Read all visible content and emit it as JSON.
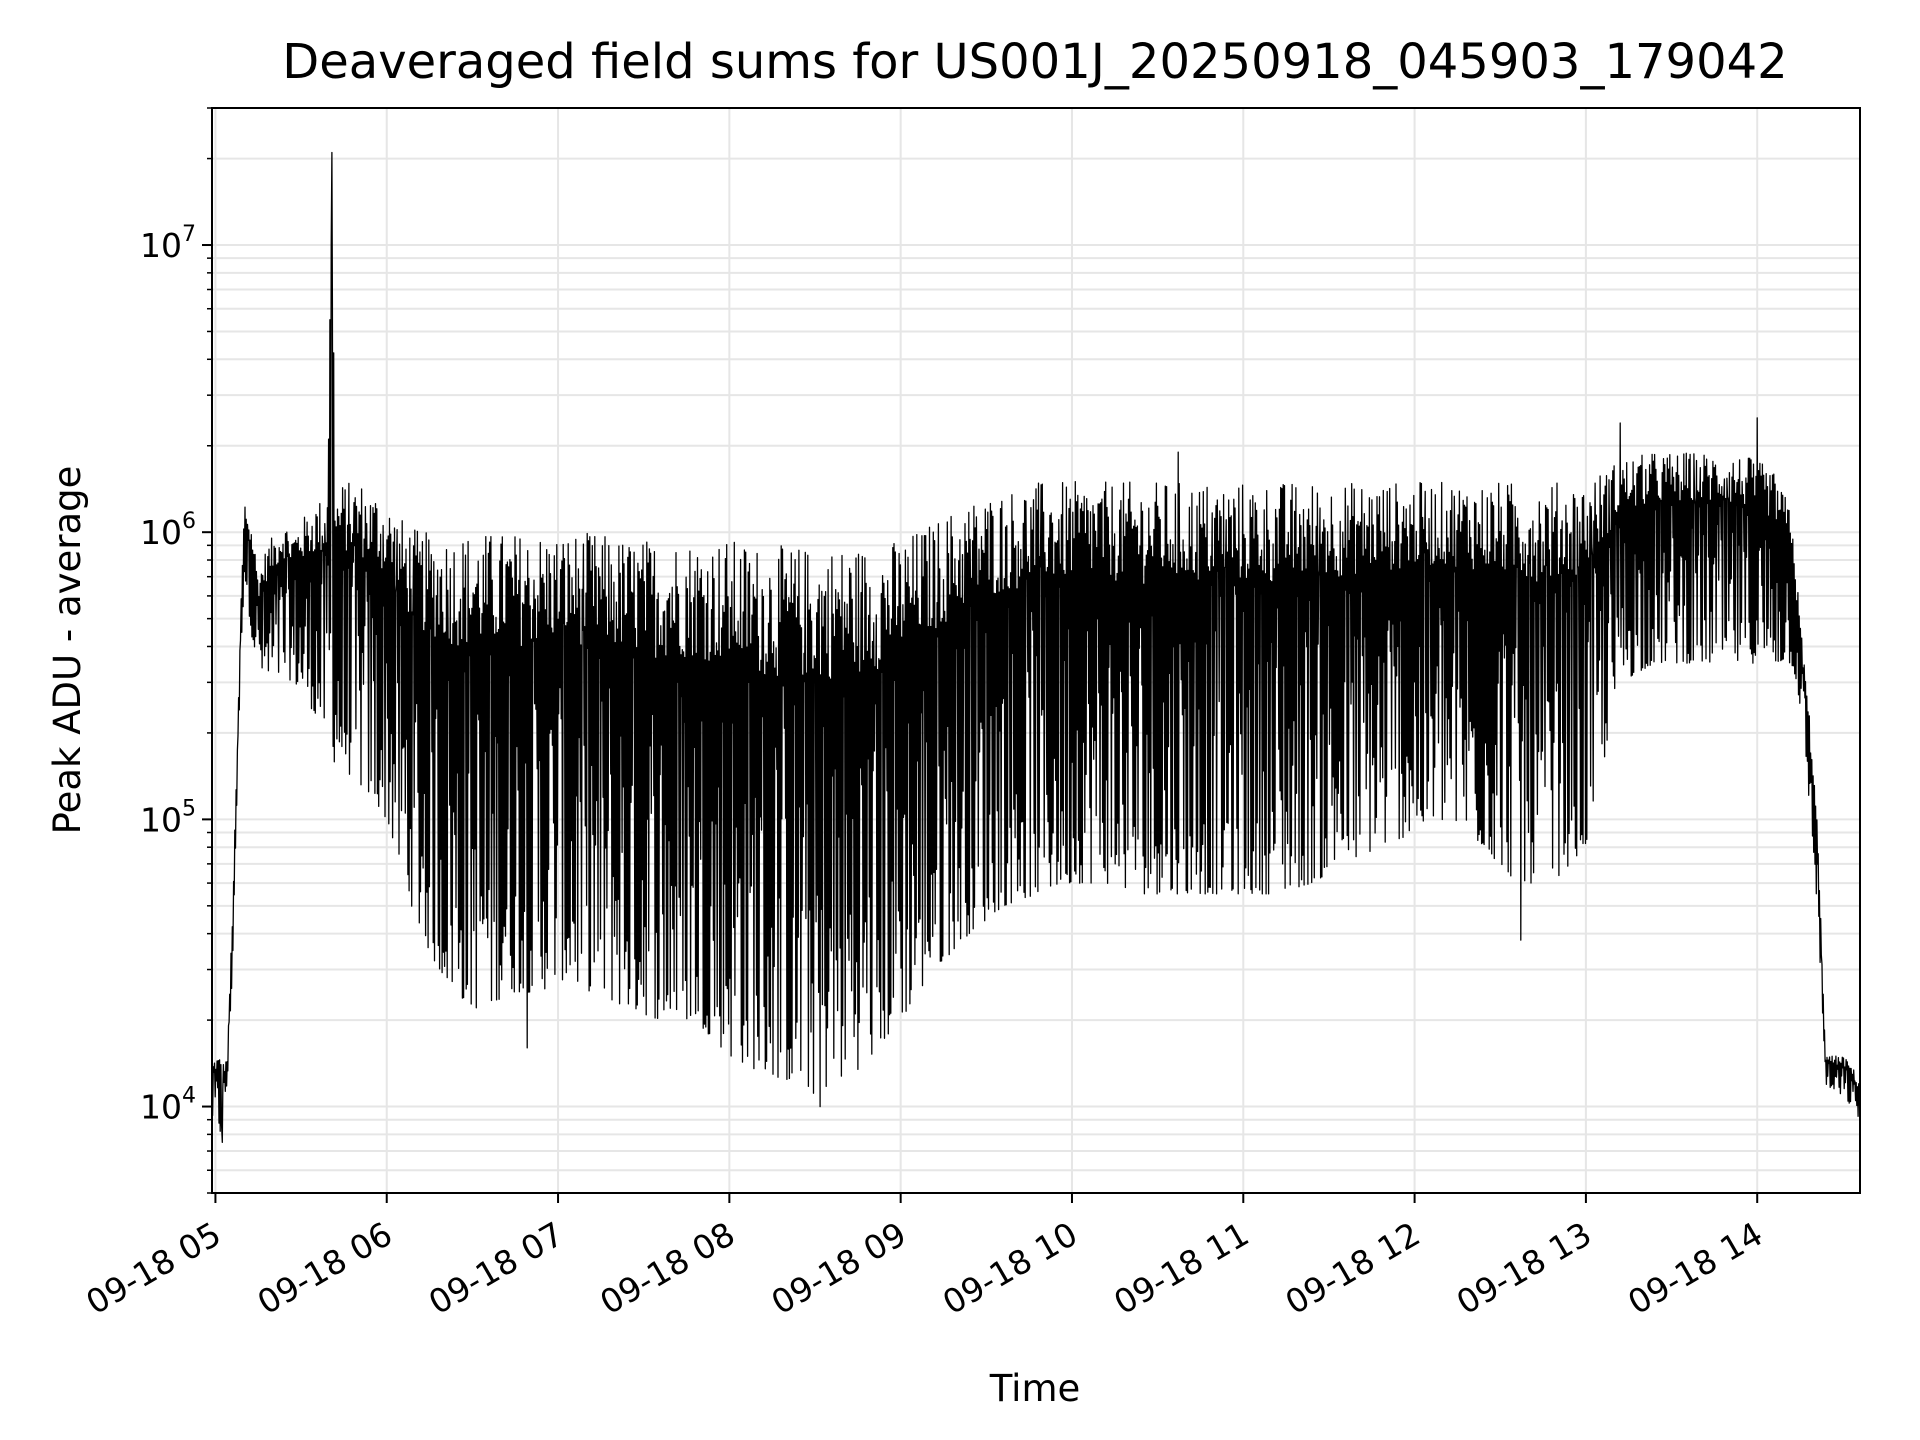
{
  "chart_data": {
    "type": "line",
    "title": "Deaveraged field sums for US001J_20250918_045903_179042",
    "xlabel": "Time",
    "ylabel": "Peak ADU - average",
    "yscale": "log",
    "ylim": [
      5000,
      30000000
    ],
    "grid": true,
    "line_color": "#000000",
    "grid_color": "#e6e6e6",
    "x_tick_labels": [
      "09-18 05",
      "09-18 06",
      "09-18 07",
      "09-18 08",
      "09-18 09",
      "09-18 10",
      "09-18 11",
      "09-18 12",
      "09-18 13",
      "09-18 14"
    ],
    "y_ticks": [
      {
        "value": 10000,
        "base": "10",
        "exp": "4"
      },
      {
        "value": 100000,
        "base": "10",
        "exp": "5"
      },
      {
        "value": 1000000,
        "base": "10",
        "exp": "6"
      },
      {
        "value": 10000000,
        "base": "10",
        "exp": "7"
      }
    ],
    "series": [
      {
        "x_hours": [
          4.98,
          5.0,
          5.03,
          5.05,
          5.07,
          5.1,
          5.13,
          5.15,
          5.17,
          5.2,
          5.22,
          5.25,
          5.3,
          5.35,
          5.4,
          5.45,
          5.5,
          5.55,
          5.6,
          5.65,
          5.68,
          5.7,
          5.75,
          5.8,
          5.85,
          5.9,
          5.95,
          6.0,
          6.1,
          6.2,
          6.3,
          6.4,
          6.5,
          6.6,
          6.7,
          6.8,
          6.9,
          7.0,
          7.2,
          7.4,
          7.6,
          7.8,
          8.0,
          8.2,
          8.4,
          8.5,
          8.6,
          8.8,
          9.0,
          9.2,
          9.4,
          9.6,
          9.8,
          10.0,
          10.2,
          10.4,
          10.6,
          10.8,
          11.0,
          11.2,
          11.4,
          11.6,
          11.8,
          12.0,
          12.2,
          12.4,
          12.6,
          12.8,
          13.0,
          13.2,
          13.4,
          13.6,
          13.8,
          14.0,
          14.1,
          14.2,
          14.25,
          14.3,
          14.35,
          14.4,
          14.45,
          14.5,
          14.55,
          14.6
        ],
        "high": [
          14000,
          15000,
          15000,
          14000,
          15000,
          50000,
          200000,
          600000,
          1300000,
          1100000,
          1000000,
          700000,
          900000,
          1000000,
          1100000,
          1000000,
          1100000,
          1200000,
          1300000,
          1300000,
          21000000,
          1400000,
          1500000,
          1500000,
          1500000,
          1400000,
          1400000,
          1300000,
          1100000,
          1000000,
          1000000,
          1000000,
          1000000,
          1000000,
          1000000,
          1000000,
          1000000,
          1000000,
          1000000,
          950000,
          950000,
          950000,
          950000,
          900000,
          900000,
          880000,
          900000,
          900000,
          950000,
          1100000,
          1300000,
          1400000,
          1500000,
          1500000,
          1500000,
          1500000,
          1500000,
          1500000,
          1500000,
          1500000,
          1500000,
          1500000,
          1500000,
          1500000,
          1500000,
          1500000,
          1500000,
          1500000,
          1500000,
          1800000,
          1900000,
          1900000,
          1900000,
          1800000,
          1600000,
          1200000,
          500000,
          250000,
          100000,
          15000,
          15000,
          15000,
          14000,
          12000
        ],
        "low": [
          9000,
          9000,
          8000,
          10000,
          12000,
          30000,
          150000,
          400000,
          700000,
          500000,
          400000,
          350000,
          280000,
          300000,
          320000,
          300000,
          280000,
          250000,
          220000,
          200000,
          180000,
          150000,
          150000,
          140000,
          130000,
          120000,
          110000,
          100000,
          60000,
          40000,
          30000,
          25000,
          22000,
          22000,
          25000,
          25000,
          25000,
          28000,
          25000,
          22000,
          20000,
          20000,
          15000,
          13000,
          12000,
          11000,
          12000,
          14000,
          20000,
          30000,
          40000,
          50000,
          55000,
          60000,
          60000,
          55000,
          55000,
          55000,
          55000,
          55000,
          60000,
          70000,
          80000,
          90000,
          100000,
          80000,
          60000,
          60000,
          80000,
          300000,
          350000,
          350000,
          350000,
          350000,
          350000,
          350000,
          250000,
          120000,
          50000,
          12000,
          11000,
          11000,
          10000,
          9000
        ],
        "spikes": [
          [
            5.68,
            21000000
          ],
          [
            14.0,
            2500000
          ],
          [
            8.53,
            10000
          ],
          [
            5.04,
            7500
          ],
          [
            12.62,
            38000
          ],
          [
            6.82,
            16000
          ],
          [
            13.2,
            2400000
          ],
          [
            10.62,
            1900000
          ]
        ]
      }
    ]
  }
}
